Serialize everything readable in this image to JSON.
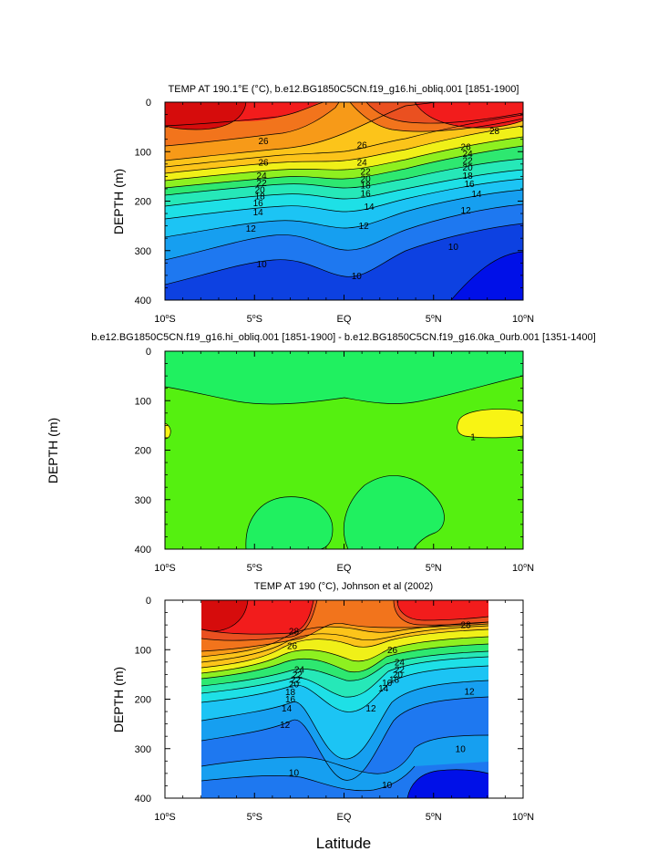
{
  "figure": {
    "xlabel": "Latitude"
  },
  "chart_data": [
    {
      "type": "heatmap",
      "title": "TEMP AT 190.1°E (°C), b.e12.BG1850C5CN.f19_g16.hi_obliq.001 [1851-1900]",
      "ylabel": "DEPTH (m)",
      "x_ticks": [
        "10°S",
        "5°S",
        "EQ",
        "5°N",
        "10°N"
      ],
      "x_tick_values": [
        -10,
        -5,
        0,
        5,
        10
      ],
      "y_ticks": [
        "0",
        "100",
        "200",
        "300",
        "400"
      ],
      "y_tick_values": [
        0,
        100,
        200,
        300,
        400
      ],
      "xlim": [
        -10,
        10
      ],
      "ylim": [
        400,
        0
      ],
      "data_xlim": [
        -10,
        10
      ],
      "contour_levels": [
        10,
        11,
        12,
        13,
        14,
        15,
        16,
        17,
        18,
        19,
        20,
        21,
        22,
        23,
        24,
        25,
        26,
        27,
        28
      ],
      "contour_labels": [
        {
          "text": "26",
          "lat": -4.5,
          "depth": 78
        },
        {
          "text": "26",
          "lat": -4.5,
          "depth": 122
        },
        {
          "text": "24",
          "lat": -4.6,
          "depth": 148
        },
        {
          "text": "22",
          "lat": -4.6,
          "depth": 163
        },
        {
          "text": "20",
          "lat": -4.7,
          "depth": 177
        },
        {
          "text": "18",
          "lat": -4.7,
          "depth": 190
        },
        {
          "text": "16",
          "lat": -4.8,
          "depth": 204
        },
        {
          "text": "14",
          "lat": -4.8,
          "depth": 222
        },
        {
          "text": "12",
          "lat": -5.2,
          "depth": 255
        },
        {
          "text": "10",
          "lat": -4.6,
          "depth": 327
        },
        {
          "text": "26",
          "lat": 1.0,
          "depth": 87
        },
        {
          "text": "24",
          "lat": 1.0,
          "depth": 122
        },
        {
          "text": "22",
          "lat": 1.2,
          "depth": 140
        },
        {
          "text": "20",
          "lat": 1.2,
          "depth": 155
        },
        {
          "text": "18",
          "lat": 1.2,
          "depth": 168
        },
        {
          "text": "16",
          "lat": 1.2,
          "depth": 184
        },
        {
          "text": "14",
          "lat": 1.4,
          "depth": 211
        },
        {
          "text": "12",
          "lat": 1.1,
          "depth": 250
        },
        {
          "text": "10",
          "lat": 0.7,
          "depth": 351
        },
        {
          "text": "26",
          "lat": 6.8,
          "depth": 90
        },
        {
          "text": "24",
          "lat": 6.9,
          "depth": 104
        },
        {
          "text": "22",
          "lat": 6.9,
          "depth": 118
        },
        {
          "text": "20",
          "lat": 6.9,
          "depth": 132
        },
        {
          "text": "18",
          "lat": 6.9,
          "depth": 148
        },
        {
          "text": "16",
          "lat": 7.0,
          "depth": 165
        },
        {
          "text": "14",
          "lat": 7.4,
          "depth": 185
        },
        {
          "text": "12",
          "lat": 6.8,
          "depth": 218
        },
        {
          "text": "10",
          "lat": 6.1,
          "depth": 292
        },
        {
          "text": "28",
          "lat": 8.4,
          "depth": 58
        }
      ]
    },
    {
      "type": "heatmap",
      "title": "b.e12.BG1850C5CN.f19_g16.hi_obliq.001 [1851-1900] - b.e12.BG1850C5CN.f19_g16.0ka_0urb.001 [1351-1400]",
      "ylabel": "DEPTH (m)",
      "x_ticks": [
        "10°S",
        "5°S",
        "EQ",
        "5°N",
        "10°N"
      ],
      "x_tick_values": [
        -10,
        -5,
        0,
        5,
        10
      ],
      "y_ticks": [
        "0",
        "100",
        "200",
        "300",
        "400"
      ],
      "y_tick_values": [
        0,
        100,
        200,
        300,
        400
      ],
      "xlim": [
        -10,
        10
      ],
      "ylim": [
        400,
        0
      ],
      "contour_labels": [
        {
          "text": "1",
          "lat": 7.2,
          "depth": 173
        }
      ]
    },
    {
      "type": "heatmap",
      "title": "TEMP AT 190 (°C), Johnson et al (2002)",
      "ylabel": "DEPTH (m)",
      "x_ticks": [
        "10°S",
        "5°S",
        "EQ",
        "5°N",
        "10°N"
      ],
      "x_tick_values": [
        -10,
        -5,
        0,
        5,
        10
      ],
      "y_ticks": [
        "0",
        "100",
        "200",
        "300",
        "400"
      ],
      "y_tick_values": [
        0,
        100,
        200,
        300,
        400
      ],
      "xlim": [
        -10,
        10
      ],
      "ylim": [
        400,
        0
      ],
      "data_xlim": [
        -8,
        8
      ],
      "contour_levels": [
        10,
        11,
        12,
        13,
        14,
        15,
        16,
        17,
        18,
        19,
        20,
        21,
        22,
        23,
        24,
        25,
        26,
        27,
        28
      ],
      "contour_labels": [
        {
          "text": "28",
          "lat": -2.8,
          "depth": 63
        },
        {
          "text": "26",
          "lat": -2.9,
          "depth": 92
        },
        {
          "text": "24",
          "lat": -2.5,
          "depth": 140
        },
        {
          "text": "22",
          "lat": -2.6,
          "depth": 150
        },
        {
          "text": "22",
          "lat": -2.7,
          "depth": 160
        },
        {
          "text": "20",
          "lat": -2.8,
          "depth": 170
        },
        {
          "text": "18",
          "lat": -3.0,
          "depth": 185
        },
        {
          "text": "16",
          "lat": -3.0,
          "depth": 200
        },
        {
          "text": "14",
          "lat": -3.2,
          "depth": 218
        },
        {
          "text": "12",
          "lat": -3.3,
          "depth": 252
        },
        {
          "text": "10",
          "lat": -2.8,
          "depth": 348
        },
        {
          "text": "26",
          "lat": 2.7,
          "depth": 100
        },
        {
          "text": "24",
          "lat": 3.1,
          "depth": 125
        },
        {
          "text": "22",
          "lat": 3.1,
          "depth": 140
        },
        {
          "text": "20",
          "lat": 3.0,
          "depth": 150
        },
        {
          "text": "18",
          "lat": 2.8,
          "depth": 160
        },
        {
          "text": "16",
          "lat": 2.4,
          "depth": 167
        },
        {
          "text": "14",
          "lat": 2.2,
          "depth": 178
        },
        {
          "text": "12",
          "lat": 1.5,
          "depth": 218
        },
        {
          "text": "10",
          "lat": 6.5,
          "depth": 300
        },
        {
          "text": "10",
          "lat": 2.4,
          "depth": 373
        },
        {
          "text": "28",
          "lat": 6.8,
          "depth": 50
        },
        {
          "text": "12",
          "lat": 7.0,
          "depth": 184
        }
      ]
    }
  ]
}
